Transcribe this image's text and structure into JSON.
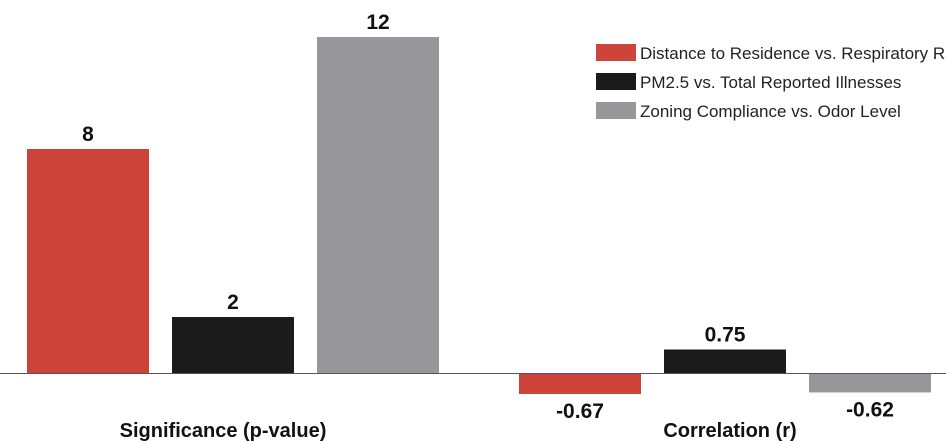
{
  "chart_data": {
    "type": "bar",
    "categories": [
      "Significance (p-value)",
      "Correlation (r)"
    ],
    "series": [
      {
        "name": "Distance to Residence vs. Respiratory Rate",
        "values": [
          8,
          -0.67
        ],
        "color": "#cc443a"
      },
      {
        "name": "PM2.5 vs. Total Reported Illnesses",
        "values": [
          2,
          0.75
        ],
        "color": "#1b1b1b"
      },
      {
        "name": "Zoning Compliance vs. Odor Level",
        "values": [
          12,
          -0.62
        ],
        "color": "#97979b"
      }
    ],
    "data_labels": [
      [
        "8",
        "-0.67"
      ],
      [
        "2",
        "0.75"
      ],
      [
        "12",
        "-0.62"
      ]
    ],
    "legend_position": "top-right",
    "grid": false,
    "baseline": 0
  }
}
